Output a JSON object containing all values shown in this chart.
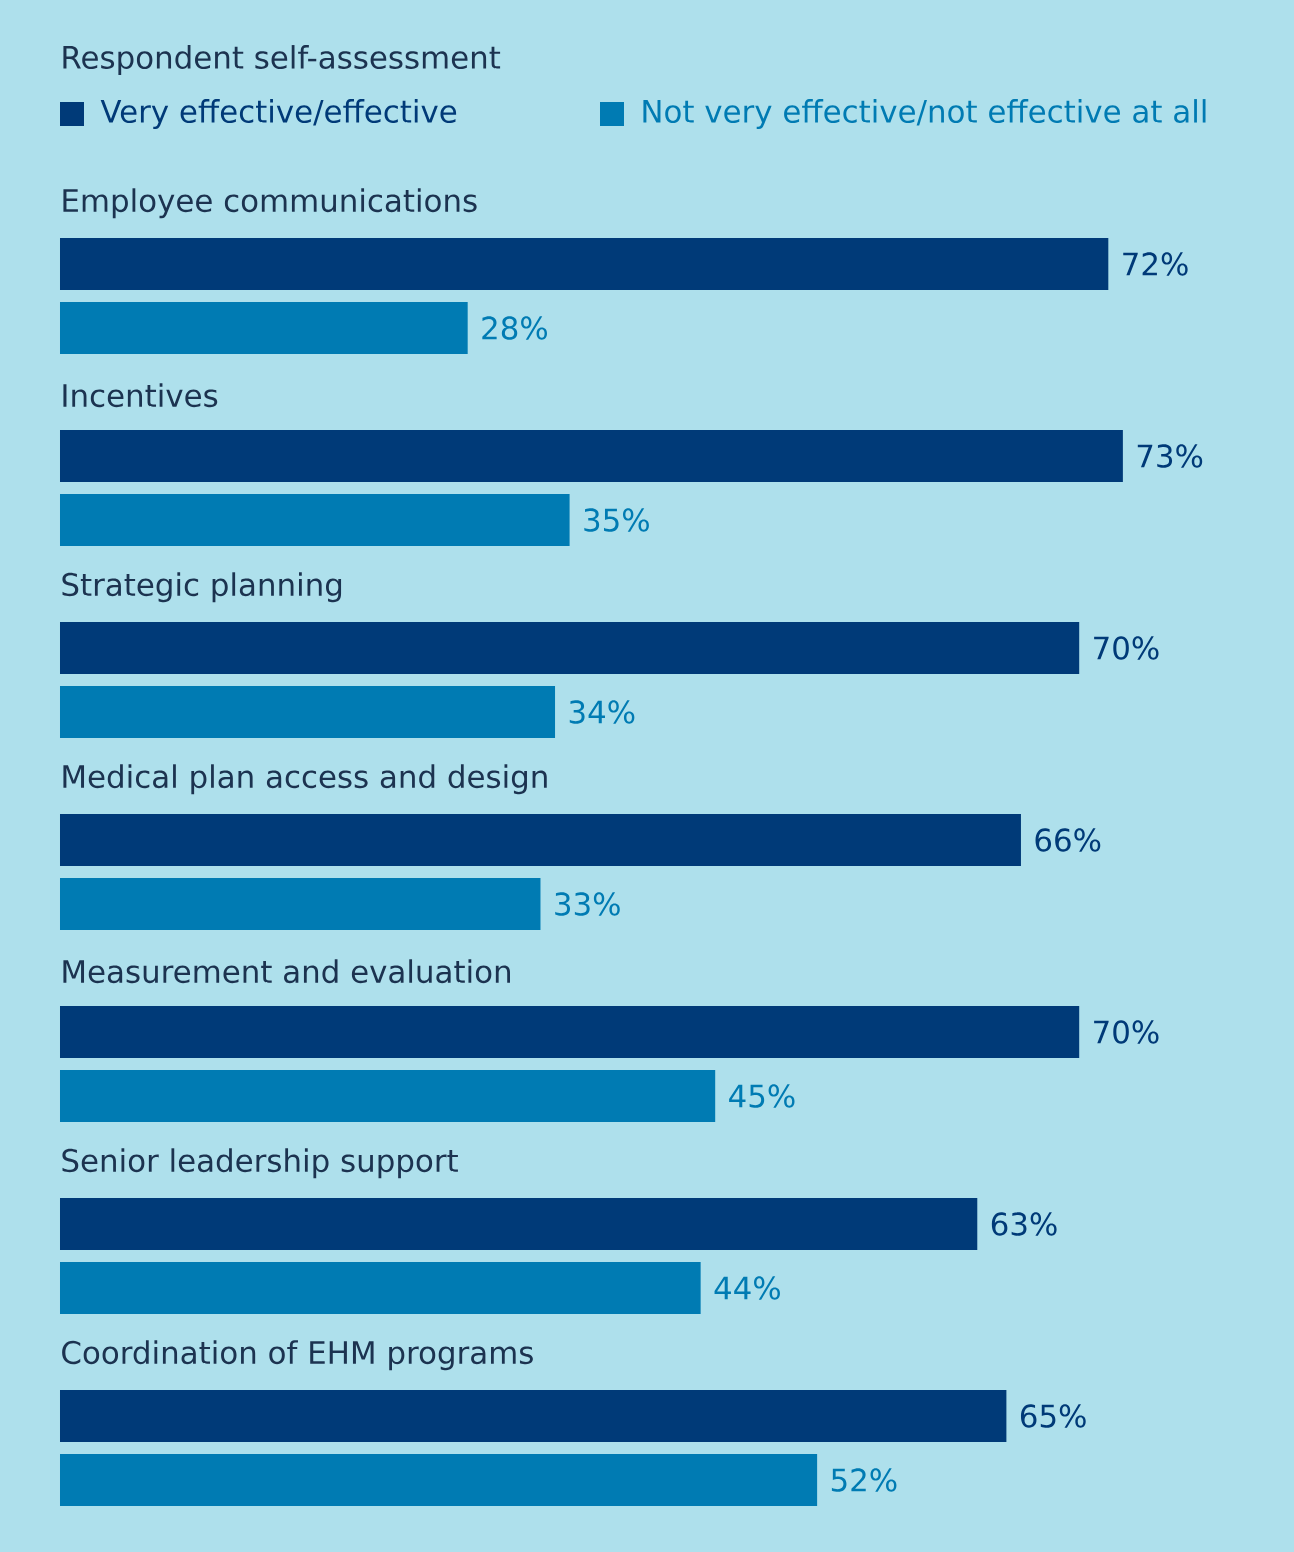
{
  "chart_data": {
    "type": "bar",
    "orientation": "horizontal",
    "legend": "top",
    "legend_title": "Respondent self-assessment",
    "categories": [
      "Employee communications",
      "Incentives",
      "Strategic planning",
      "Medical plan access and design",
      "Measurement and evaluation",
      "Senior leadership support",
      "Coordination of EHM programs"
    ],
    "series": [
      {
        "name": "Very effective/effective",
        "color": "#003a78",
        "values": [
          72,
          73,
          70,
          66,
          70,
          63,
          65
        ],
        "value_labels": [
          "72%",
          "73%",
          "70%",
          "66%",
          "70%",
          "63%",
          "65%"
        ]
      },
      {
        "name": "Not very effective/not effective at all",
        "color": "#007bb3",
        "values": [
          28,
          35,
          34,
          33,
          45,
          44,
          52
        ],
        "value_labels": [
          "28%",
          "35%",
          "34%",
          "33%",
          "45%",
          "44%",
          "52%"
        ]
      }
    ]
  }
}
